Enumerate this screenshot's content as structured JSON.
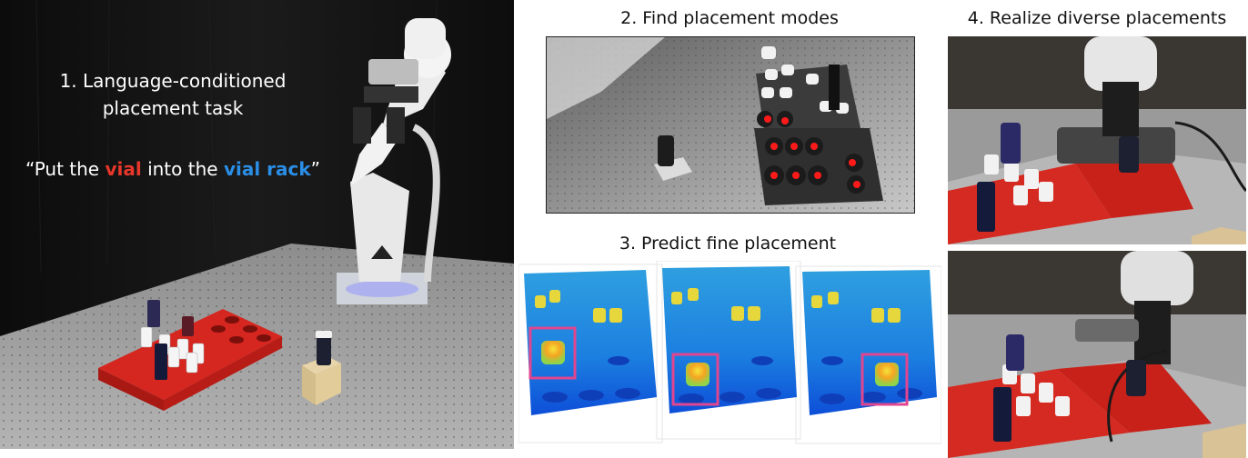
{
  "panel1": {
    "heading_line1": "1. Language-conditioned",
    "heading_line2": "placement task",
    "instruction": {
      "prefix": "“Put the ",
      "object": "vial",
      "middle": " into the ",
      "target": "vial rack",
      "suffix": "”"
    }
  },
  "panel2": {
    "title": "2. Find placement modes"
  },
  "panel3": {
    "title": "3. Predict fine placement"
  },
  "panel4": {
    "title": "4. Realize diverse placements"
  },
  "colors": {
    "object_highlight": "#e8372a",
    "target_highlight": "#2b8ee6",
    "placement_box": "#e0468f",
    "placement_dot": "#ff1a1a"
  },
  "icons": [
    "robot-arm",
    "vial-rack",
    "vial",
    "wooden-block",
    "point-cloud"
  ]
}
